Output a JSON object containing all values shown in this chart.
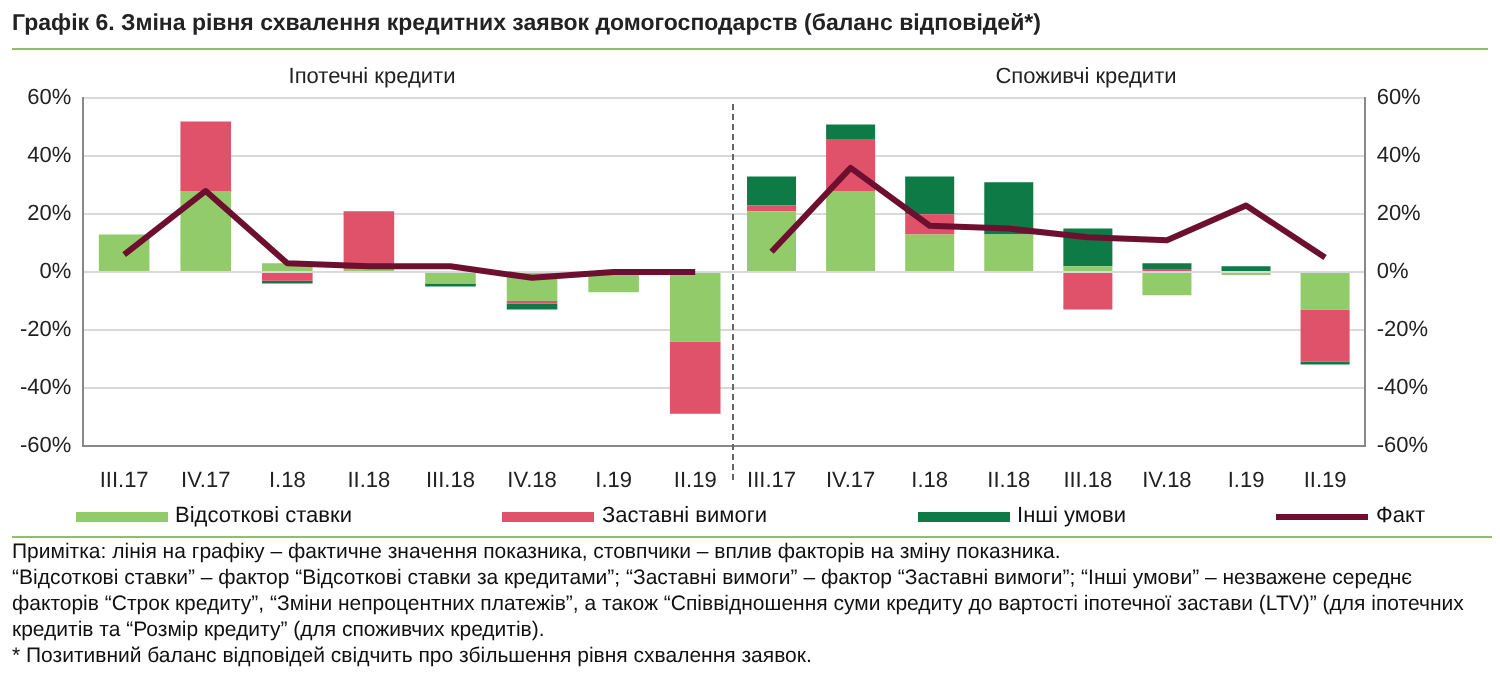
{
  "chart_data": [
    {
      "type": "bar",
      "title": "Іпотечні кредити",
      "stacked": true,
      "categories": [
        "III.17",
        "IV.17",
        "I.18",
        "II.18",
        "III.18",
        "IV.18",
        "I.19",
        "II.19"
      ],
      "series": [
        {
          "name": "Відсоткові ставки",
          "color": "#92cc6a",
          "values": [
            13,
            28,
            3,
            1,
            -4,
            -10,
            -7,
            -24
          ]
        },
        {
          "name": "Заставні вимоги",
          "color": "#e0516a",
          "values": [
            0,
            24,
            -3,
            20,
            0,
            -1,
            0,
            -25
          ]
        },
        {
          "name": "Інші умови",
          "color": "#0e7a45",
          "values": [
            0,
            0,
            -1,
            0,
            -1,
            -2,
            0,
            0
          ]
        },
        {
          "name": "Факт",
          "type": "line",
          "color": "#6d1030",
          "values": [
            6,
            28,
            3,
            2,
            2,
            -2,
            0,
            0
          ]
        }
      ],
      "ylim": [
        -60,
        60
      ],
      "yticks": [
        {
          "value": -60,
          "label": "-60%"
        },
        {
          "value": -40,
          "label": "-40%"
        },
        {
          "value": -20,
          "label": "-20%"
        },
        {
          "value": 0,
          "label": "0%"
        },
        {
          "value": 20,
          "label": "20%"
        },
        {
          "value": 40,
          "label": "40%"
        },
        {
          "value": 60,
          "label": "60%"
        }
      ],
      "grid": "y",
      "legend": "bottom",
      "marker": "none",
      "annotations": [
        "Графік 6. Зміна рівня схвалення кредитних заявок домогосподарств (баланс відповідей*)"
      ]
    },
    {
      "type": "bar",
      "title": "Споживчі кредити",
      "stacked": true,
      "categories": [
        "III.17",
        "IV.17",
        "I.18",
        "II.18",
        "III.18",
        "IV.18",
        "I.19",
        "II.19"
      ],
      "series": [
        {
          "color": "#92cc6a",
          "values": [
            21,
            28,
            13,
            13,
            2,
            -8,
            -1,
            -13
          ]
        },
        {
          "color": "#e0516a",
          "values": [
            2,
            18,
            7,
            0,
            -13,
            1,
            0,
            -18
          ]
        },
        {
          "color": "#0e7a45",
          "values": [
            10,
            5,
            13,
            18,
            13,
            2,
            2,
            -1
          ]
        },
        {
          "type": "line",
          "color": "#6d1030",
          "values": [
            7,
            36,
            16,
            15,
            12,
            11,
            23,
            5
          ]
        }
      ],
      "ylim": [
        -60,
        60
      ],
      "yticks": [
        {
          "value": -60,
          "label": "-60%"
        },
        {
          "value": -40,
          "label": "-40%"
        },
        {
          "value": -20,
          "label": "-20%"
        },
        {
          "value": 0,
          "label": "0%"
        },
        {
          "value": 20,
          "label": "20%"
        },
        {
          "value": 40,
          "label": "40%"
        },
        {
          "value": 60,
          "label": "60%"
        }
      ],
      "grid": "y",
      "marker": "none",
      "annotations": [
        "Примітка: лінія на графіку – фактичне значення показника, стовпчики – вплив факторів на зміну показника.",
        "“Відсоткові ставки” – фактор “Відсоткові ставки за кредитами”; “Заставні вимоги” – фактор “Заставні вимоги”; “Інші умови” – незважене середнє факторів “Строк кредиту”, “Зміни непроцентних платежів”, а також “Співвідношення суми кредиту до вартості іпотечної застави (LTV)” (для іпотечних кредитів та “Розмір кредиту” (для споживчих кредитів).",
        "* Позитивний баланс відповідей свідчить про збільшення рівня схвалення заявок."
      ]
    }
  ]
}
